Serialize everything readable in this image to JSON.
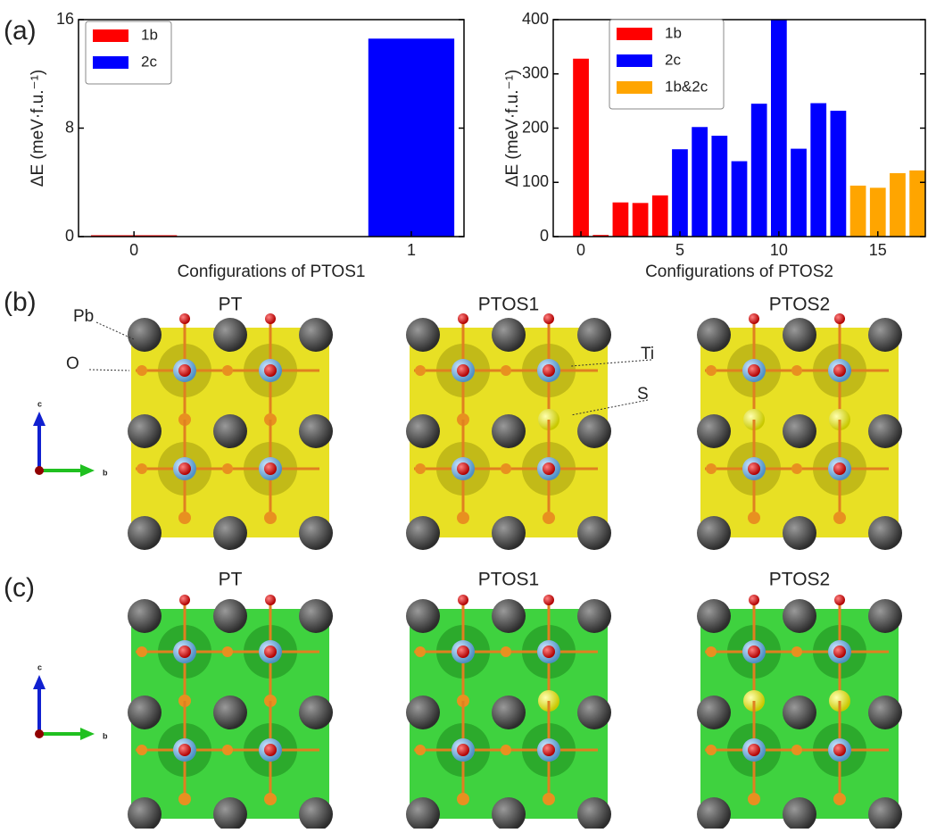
{
  "chart_data": [
    {
      "type": "bar",
      "x": [
        0,
        1
      ],
      "series": [
        {
          "name": "1b",
          "color": "#ff0000",
          "values": [
            0.1,
            null
          ]
        },
        {
          "name": "2c",
          "color": "#0000ff",
          "values": [
            null,
            14.6
          ]
        }
      ],
      "xlim": [
        -0.2,
        1.19
      ],
      "xticks": [
        0,
        1
      ],
      "ylim": [
        0,
        16
      ],
      "yticks": [
        0,
        8,
        16
      ],
      "xlabel": "Configurations of PTOS1",
      "ylabel": "ΔE (meV·f.u.⁻¹)",
      "legend": "upper left"
    },
    {
      "type": "bar",
      "x": [
        0,
        1,
        2,
        3,
        4,
        5,
        6,
        7,
        8,
        9,
        10,
        11,
        12,
        13,
        14,
        15,
        16,
        17
      ],
      "series": [
        {
          "name": "1b",
          "color": "#ff0000",
          "values": [
            328,
            3,
            63,
            62,
            76,
            null,
            null,
            null,
            null,
            null,
            null,
            null,
            null,
            null,
            null,
            null,
            null,
            null
          ]
        },
        {
          "name": "2c",
          "color": "#0000ff",
          "values": [
            null,
            null,
            null,
            null,
            null,
            161,
            202,
            186,
            139,
            245,
            400,
            162,
            246,
            232,
            null,
            null,
            null,
            null
          ]
        },
        {
          "name": "1b&2c",
          "color": "#ffa500",
          "values": [
            null,
            null,
            null,
            null,
            null,
            null,
            null,
            null,
            null,
            null,
            null,
            null,
            null,
            null,
            94,
            90,
            117,
            122
          ]
        }
      ],
      "xlim": [
        -1.4,
        17.4
      ],
      "xticks": [
        0,
        5,
        10,
        15
      ],
      "ylim": [
        0,
        400
      ],
      "yticks": [
        0,
        100,
        200,
        300,
        400
      ],
      "xlabel": "Configurations of PTOS2",
      "ylabel": "ΔE (meV·f.u.⁻¹)",
      "legend": "upper left"
    }
  ],
  "panel_labels": [
    "(a)",
    "(b)",
    "(c)"
  ],
  "panel_b": {
    "titles": [
      "PT",
      "PTOS1",
      "PTOS2"
    ],
    "atom_labels": [
      "Pb",
      "O",
      "Ti",
      "S"
    ],
    "axis_labels": [
      "c",
      "b"
    ]
  },
  "panel_c": {
    "titles": [
      "PT",
      "PTOS1",
      "PTOS2"
    ],
    "axis_labels": [
      "c",
      "b"
    ]
  }
}
